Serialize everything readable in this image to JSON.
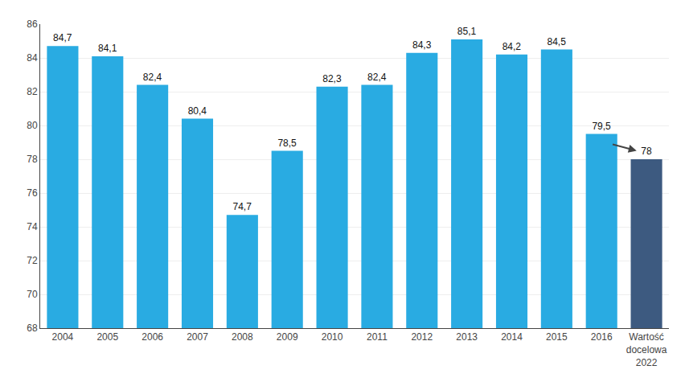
{
  "chart_data": {
    "type": "bar",
    "categories": [
      "2004",
      "2005",
      "2006",
      "2007",
      "2008",
      "2009",
      "2010",
      "2011",
      "2012",
      "2013",
      "2014",
      "2015",
      "2016",
      "Wartość\ndocelowa\n2022"
    ],
    "values": [
      84.7,
      84.1,
      82.4,
      80.4,
      74.7,
      78.5,
      82.3,
      82.4,
      84.3,
      85.1,
      84.2,
      84.5,
      79.5,
      78
    ],
    "value_labels": [
      "84,7",
      "84,1",
      "82,4",
      "80,4",
      "74,7",
      "78,5",
      "82,3",
      "82,4",
      "84,3",
      "85,1",
      "84,2",
      "84,5",
      "79,5",
      "78"
    ],
    "colors": [
      "#29ABE2",
      "#29ABE2",
      "#29ABE2",
      "#29ABE2",
      "#29ABE2",
      "#29ABE2",
      "#29ABE2",
      "#29ABE2",
      "#29ABE2",
      "#29ABE2",
      "#29ABE2",
      "#29ABE2",
      "#29ABE2",
      "#3D5A80"
    ],
    "ylim": [
      68,
      86
    ],
    "yticks": [
      68,
      70,
      72,
      74,
      76,
      78,
      80,
      82,
      84,
      86
    ],
    "grid": true,
    "data_labels": true
  }
}
